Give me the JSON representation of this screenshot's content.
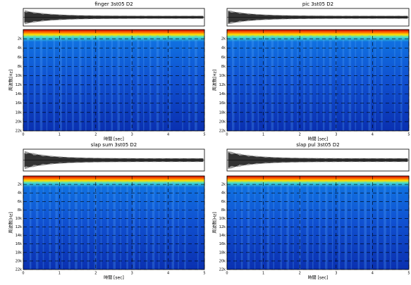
{
  "chart_data": [
    {
      "type": "spectrogram",
      "title": "finger 3st05 D2",
      "xlabel": "時間 [sec]",
      "ylabel": "周波数[Hz]",
      "xlim": [
        0,
        5
      ],
      "xticks": [
        0,
        1,
        2,
        3,
        4,
        5
      ],
      "ylim": [
        0,
        22000
      ],
      "y_inverted": true,
      "yticks": [
        {
          "value": 2000,
          "label": "2k"
        },
        {
          "value": 4000,
          "label": "4k"
        },
        {
          "value": 6000,
          "label": "6k"
        },
        {
          "value": 8000,
          "label": "8k"
        },
        {
          "value": 10000,
          "label": "10k"
        },
        {
          "value": 12000,
          "label": "12k"
        },
        {
          "value": 14000,
          "label": "14k"
        },
        {
          "value": 16000,
          "label": "16k"
        },
        {
          "value": 18000,
          "label": "18k"
        },
        {
          "value": 20000,
          "label": "20k"
        },
        {
          "value": 22000,
          "label": "22k"
        }
      ],
      "grid": true
    },
    {
      "type": "spectrogram",
      "title": "pic     3st05 D2",
      "xlabel": "時間 [sec]",
      "ylabel": "周波数[Hz]",
      "xlim": [
        0,
        5
      ],
      "xticks": [
        0,
        1,
        2,
        3,
        4,
        5
      ],
      "ylim": [
        0,
        22000
      ],
      "y_inverted": true,
      "yticks": [
        {
          "value": 2000,
          "label": "2k"
        },
        {
          "value": 4000,
          "label": "4k"
        },
        {
          "value": 6000,
          "label": "6k"
        },
        {
          "value": 8000,
          "label": "8k"
        },
        {
          "value": 10000,
          "label": "10k"
        },
        {
          "value": 12000,
          "label": "12k"
        },
        {
          "value": 14000,
          "label": "14k"
        },
        {
          "value": 16000,
          "label": "16k"
        },
        {
          "value": 18000,
          "label": "18k"
        },
        {
          "value": 20000,
          "label": "20k"
        },
        {
          "value": 22000,
          "label": "22k"
        }
      ],
      "grid": true
    },
    {
      "type": "spectrogram",
      "title": "slap sum 3st05 D2",
      "xlabel": "時間 [sec]",
      "ylabel": "周波数[Hz]",
      "xlim": [
        0,
        5
      ],
      "xticks": [
        0,
        1,
        2,
        3,
        4,
        5
      ],
      "ylim": [
        0,
        22000
      ],
      "y_inverted": true,
      "yticks": [
        {
          "value": 2000,
          "label": "2k"
        },
        {
          "value": 4000,
          "label": "4k"
        },
        {
          "value": 6000,
          "label": "6k"
        },
        {
          "value": 8000,
          "label": "8k"
        },
        {
          "value": 10000,
          "label": "10k"
        },
        {
          "value": 12000,
          "label": "12k"
        },
        {
          "value": 14000,
          "label": "14k"
        },
        {
          "value": 16000,
          "label": "16k"
        },
        {
          "value": 18000,
          "label": "18k"
        },
        {
          "value": 20000,
          "label": "20k"
        },
        {
          "value": 22000,
          "label": "22k"
        }
      ],
      "grid": true
    },
    {
      "type": "spectrogram",
      "title": "slap pul 3st05 D2",
      "xlabel": "時間 [sec]",
      "ylabel": "周波数[Hz]",
      "xlim": [
        0,
        5
      ],
      "xticks": [
        0,
        1,
        2,
        3,
        4,
        5
      ],
      "ylim": [
        0,
        22000
      ],
      "y_inverted": true,
      "yticks": [
        {
          "value": 2000,
          "label": "2k"
        },
        {
          "value": 4000,
          "label": "4k"
        },
        {
          "value": 6000,
          "label": "6k"
        },
        {
          "value": 8000,
          "label": "8k"
        },
        {
          "value": 10000,
          "label": "10k"
        },
        {
          "value": 12000,
          "label": "12k"
        },
        {
          "value": 14000,
          "label": "14k"
        },
        {
          "value": 16000,
          "label": "16k"
        },
        {
          "value": 18000,
          "label": "18k"
        },
        {
          "value": 20000,
          "label": "20k"
        },
        {
          "value": 22000,
          "label": "22k"
        }
      ],
      "grid": true
    }
  ]
}
